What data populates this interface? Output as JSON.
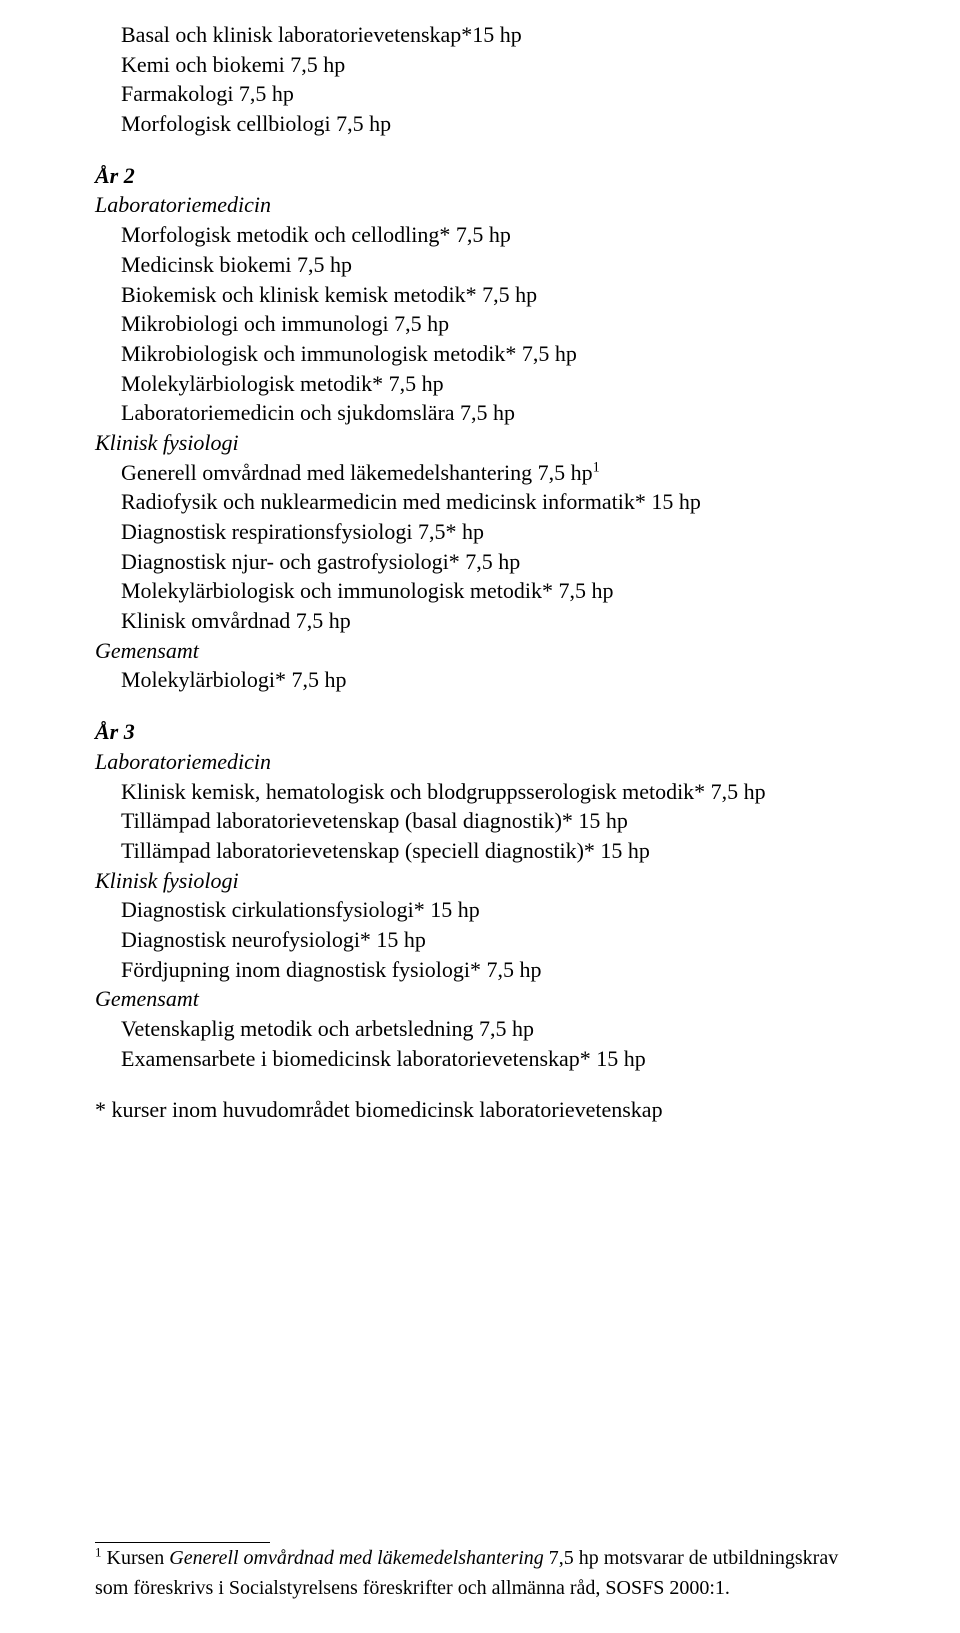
{
  "year1_extra": {
    "l1": "Basal och klinisk laboratorievetenskap*15 hp",
    "l2": "Kemi och biokemi 7,5 hp",
    "l3": "Farmakologi 7,5 hp",
    "l4": "Morfologisk cellbiologi 7,5 hp"
  },
  "year2": {
    "heading": "År 2",
    "sub_lab": "Laboratoriemedicin",
    "lab": {
      "l1": "Morfologisk metodik och cellodling* 7,5 hp",
      "l2": "Medicinsk biokemi 7,5 hp",
      "l3": "Biokemisk och klinisk kemisk metodik* 7,5 hp",
      "l4": "Mikrobiologi och immunologi 7,5 hp",
      "l5": "Mikrobiologisk och immunologisk metodik* 7,5 hp",
      "l6": "Molekylärbiologisk metodik* 7,5 hp",
      "l7": "Laboratoriemedicin och sjukdomslära 7,5 hp"
    },
    "sub_kf": "Klinisk fysiologi",
    "kf": {
      "l1a": "Generell omvårdnad med läkemedelshantering 7,5 hp",
      "l1sup": "1",
      "l2": "Radiofysik och nuklearmedicin med medicinsk informatik* 15 hp",
      "l3": "Diagnostisk respirationsfysiologi 7,5* hp",
      "l4": "Diagnostisk njur- och gastrofysiologi* 7,5 hp",
      "l5": "Molekylärbiologisk och immunologisk metodik* 7,5 hp",
      "l6": "Klinisk omvårdnad 7,5 hp"
    },
    "sub_gem": "Gemensamt",
    "gem": {
      "l1": "Molekylärbiologi* 7,5 hp"
    }
  },
  "year3": {
    "heading": "År 3",
    "sub_lab": "Laboratoriemedicin",
    "lab": {
      "l1": "Klinisk kemisk, hematologisk och blodgruppsserologisk metodik* 7,5 hp",
      "l2": "Tillämpad laboratorievetenskap (basal diagnostik)* 15 hp",
      "l3": "Tillämpad laboratorievetenskap (speciell diagnostik)* 15 hp"
    },
    "sub_kf": "Klinisk fysiologi",
    "kf": {
      "l1": "Diagnostisk cirkulationsfysiologi* 15 hp",
      "l2": "Diagnostisk neurofysiologi* 15 hp",
      "l3": "Fördjupning inom diagnostisk fysiologi* 7,5 hp"
    },
    "sub_gem": "Gemensamt",
    "gem": {
      "l1": "Vetenskaplig metodik och arbetsledning 7,5 hp",
      "l2": "Examensarbete i biomedicinsk laboratorievetenskap* 15 hp"
    }
  },
  "note": "* kurser inom huvudområdet biomedicinsk laboratorievetenskap",
  "footnote": {
    "sup": "1",
    "pre": " Kursen ",
    "italic": "Generell omvårdnad med läkemedelshantering",
    "post": " 7,5 hp motsvarar de utbildningskrav som föreskrivs i Socialstyrelsens föreskrifter och allmänna råd, SOSFS 2000:1."
  }
}
